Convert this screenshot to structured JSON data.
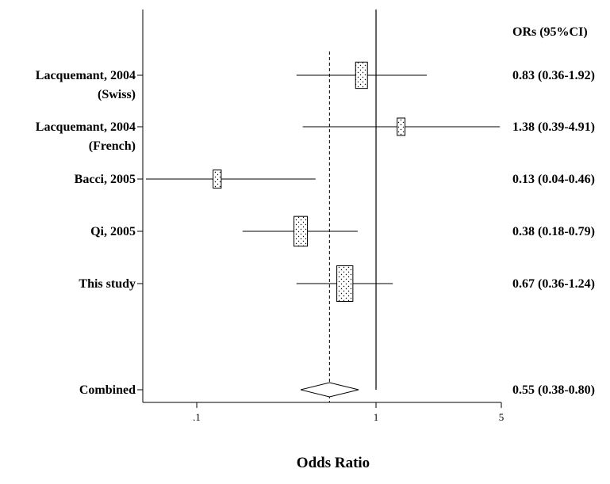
{
  "chart_data": {
    "type": "forest",
    "xlabel": "Odds Ratio",
    "x_scale": "log",
    "xlim": [
      0.05,
      5
    ],
    "x_ticks": [
      {
        "value": 0.1,
        "label": ".1"
      },
      {
        "value": 1,
        "label": "1"
      },
      {
        "value": 5,
        "label": "5"
      }
    ],
    "reference_line": 1,
    "pooled_line": 0.55,
    "column_header": "ORs (95%CI)",
    "studies": [
      {
        "label_lines": [
          "Lacquemant, 2004",
          "(Swiss)"
        ],
        "or": 0.83,
        "lower": 0.36,
        "upper": 1.92,
        "ci_text": "0.83 (0.36-1.92)"
      },
      {
        "label_lines": [
          "Lacquemant, 2004",
          "(French)"
        ],
        "or": 1.38,
        "lower": 0.39,
        "upper": 4.91,
        "ci_text": "1.38 (0.39-4.91)"
      },
      {
        "label_lines": [
          "Bacci, 2005"
        ],
        "or": 0.13,
        "lower": 0.04,
        "upper": 0.46,
        "ci_text": "0.13 (0.04-0.46)"
      },
      {
        "label_lines": [
          "Qi, 2005"
        ],
        "or": 0.38,
        "lower": 0.18,
        "upper": 0.79,
        "ci_text": "0.38 (0.18-0.79)"
      },
      {
        "label_lines": [
          "This study"
        ],
        "or": 0.67,
        "lower": 0.36,
        "upper": 1.24,
        "ci_text": "0.67 (0.36-1.24)"
      }
    ],
    "combined": {
      "label": "Combined",
      "or": 0.55,
      "lower": 0.38,
      "upper": 0.8,
      "ci_text": "0.55 (0.38-0.80)"
    }
  }
}
